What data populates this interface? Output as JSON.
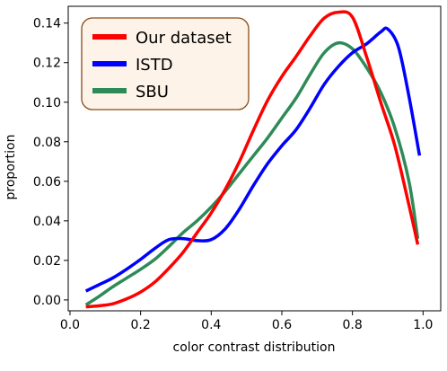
{
  "chart_data": {
    "type": "line",
    "title": "",
    "xlabel": "color contrast distribution",
    "ylabel": "proportion",
    "xlim": [
      -0.005,
      1.05
    ],
    "ylim": [
      -0.0055,
      0.1485
    ],
    "x_ticks": [
      0.0,
      0.2,
      0.4,
      0.6,
      0.8,
      1.0
    ],
    "x_tick_labels": [
      "0.0",
      "0.2",
      "0.4",
      "0.6",
      "0.8",
      "1.0"
    ],
    "y_ticks": [
      0.0,
      0.02,
      0.04,
      0.06,
      0.08,
      0.1,
      0.12,
      0.14
    ],
    "y_tick_labels": [
      "0.00",
      "0.02",
      "0.04",
      "0.06",
      "0.08",
      "0.10",
      "0.12",
      "0.14"
    ],
    "grid": false,
    "legend_position": "top-left",
    "legend_style": {
      "background": "#fdf3e9",
      "border": "#8b4a16"
    },
    "series": [
      {
        "name": "Our dataset",
        "color": "#ff0000",
        "x": [
          0.045,
          0.08,
          0.12,
          0.16,
          0.2,
          0.24,
          0.28,
          0.32,
          0.36,
          0.4,
          0.44,
          0.48,
          0.52,
          0.56,
          0.6,
          0.64,
          0.68,
          0.72,
          0.76,
          0.8,
          0.84,
          0.88,
          0.92,
          0.96,
          0.985
        ],
        "y": [
          -0.0035,
          -0.003,
          -0.002,
          0.0005,
          0.004,
          0.009,
          0.016,
          0.024,
          0.034,
          0.044,
          0.056,
          0.07,
          0.086,
          0.101,
          0.113,
          0.123,
          0.1335,
          0.1425,
          0.1455,
          0.143,
          0.123,
          0.1,
          0.078,
          0.048,
          0.028
        ]
      },
      {
        "name": "ISTD",
        "color": "#0000ff",
        "x": [
          0.045,
          0.08,
          0.12,
          0.16,
          0.2,
          0.24,
          0.28,
          0.32,
          0.36,
          0.4,
          0.44,
          0.48,
          0.52,
          0.56,
          0.6,
          0.64,
          0.68,
          0.72,
          0.76,
          0.8,
          0.84,
          0.88,
          0.9,
          0.93,
          0.96,
          0.99
        ],
        "y": [
          0.0045,
          0.0075,
          0.011,
          0.0155,
          0.0205,
          0.026,
          0.0305,
          0.031,
          0.03,
          0.0305,
          0.036,
          0.046,
          0.058,
          0.069,
          0.078,
          0.086,
          0.097,
          0.109,
          0.118,
          0.125,
          0.1295,
          0.1355,
          0.137,
          0.128,
          0.103,
          0.073
        ]
      },
      {
        "name": "SBU",
        "color": "#2e8b57",
        "x": [
          0.045,
          0.08,
          0.12,
          0.16,
          0.2,
          0.24,
          0.28,
          0.32,
          0.36,
          0.4,
          0.44,
          0.48,
          0.52,
          0.56,
          0.6,
          0.64,
          0.68,
          0.72,
          0.76,
          0.8,
          0.84,
          0.88,
          0.92,
          0.96,
          0.985
        ],
        "y": [
          -0.0025,
          0.0015,
          0.0065,
          0.011,
          0.0155,
          0.0205,
          0.027,
          0.034,
          0.04,
          0.047,
          0.055,
          0.064,
          0.073,
          0.082,
          0.092,
          0.102,
          0.114,
          0.125,
          0.13,
          0.127,
          0.1175,
          0.105,
          0.087,
          0.06,
          0.031
        ]
      }
    ]
  }
}
